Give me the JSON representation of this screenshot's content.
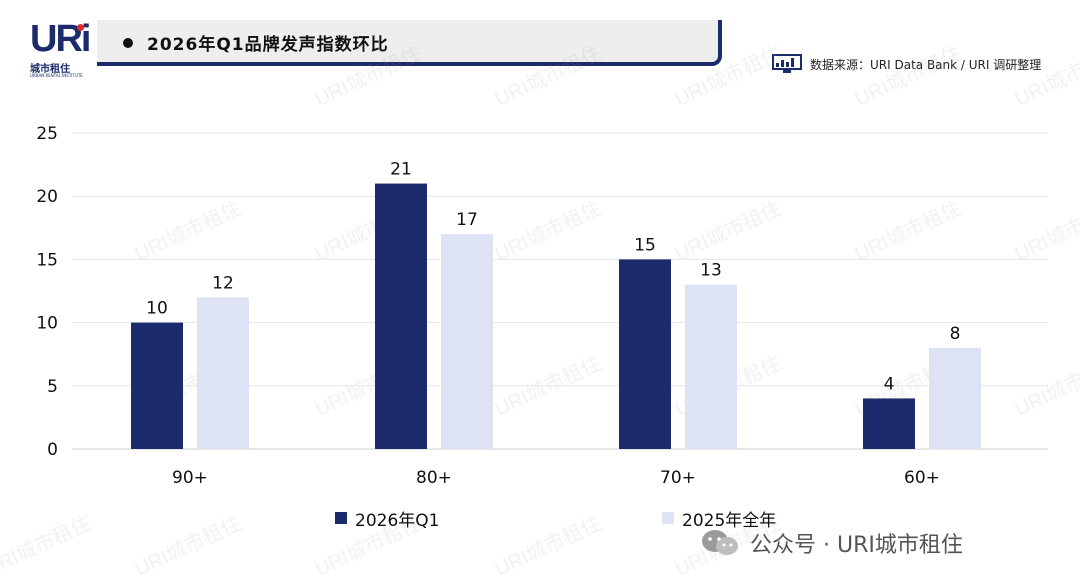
{
  "logo": {
    "mark": "URi",
    "cn": "城市租住",
    "en": "URBAN RENTAL INSTITUTE"
  },
  "header": {
    "title": "2026年Q1品牌发声指数环比",
    "source": "数据来源：URI Data Bank / URI 调研整理"
  },
  "watermark": "URI城市租住",
  "footer": {
    "text": "公众号 · URI城市租住"
  },
  "colors": {
    "primary": "#1b2b6b",
    "secondary": "#dde3f4"
  },
  "chart_data": {
    "type": "bar",
    "categories": [
      "90+",
      "80+",
      "70+",
      "60+"
    ],
    "series": [
      {
        "name": "2026年Q1",
        "values": [
          10,
          21,
          15,
          4
        ],
        "color": "#1b2b6b"
      },
      {
        "name": "2025年全年",
        "values": [
          12,
          17,
          13,
          8
        ],
        "color": "#dde3f4"
      }
    ],
    "yticks": [
      "0",
      "5",
      "10",
      "15",
      "20",
      "25"
    ],
    "ylim": [
      0,
      25
    ],
    "grid": true,
    "legend_position": "bottom"
  }
}
